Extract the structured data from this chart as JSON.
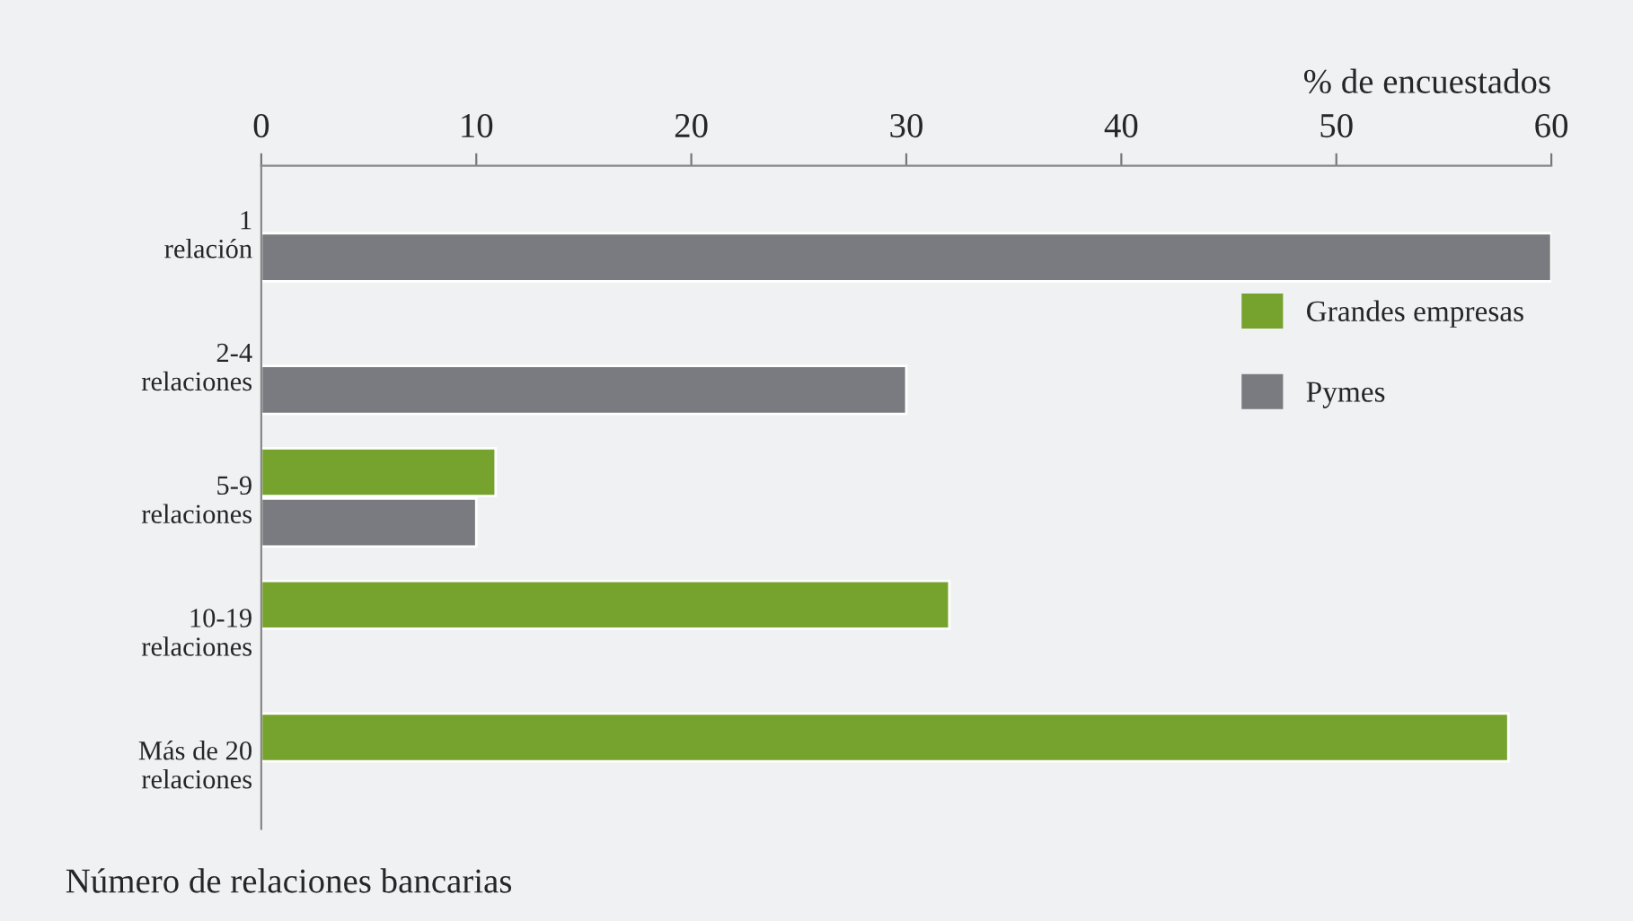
{
  "chart_data": {
    "type": "bar",
    "orientation": "horizontal",
    "xlabel": "% de encuestados",
    "ylabel": "Número de relaciones bancarias",
    "categories": [
      "1\nrelación",
      "2-4\nrelaciones",
      "5-9\nrelaciones",
      "10-19\nrelaciones",
      "Más de 20\nrelaciones"
    ],
    "series": [
      {
        "name": "Grandes empresas",
        "color": "#76a22e",
        "values": [
          null,
          null,
          10.9,
          32,
          58
        ]
      },
      {
        "name": "Pymes",
        "color": "#7a7b80",
        "values": [
          60,
          30,
          10,
          null,
          null
        ]
      }
    ],
    "xlim": [
      0,
      60
    ],
    "xticks": [
      0,
      10,
      20,
      30,
      40,
      50,
      60
    ],
    "grid": false,
    "legend": "right"
  }
}
